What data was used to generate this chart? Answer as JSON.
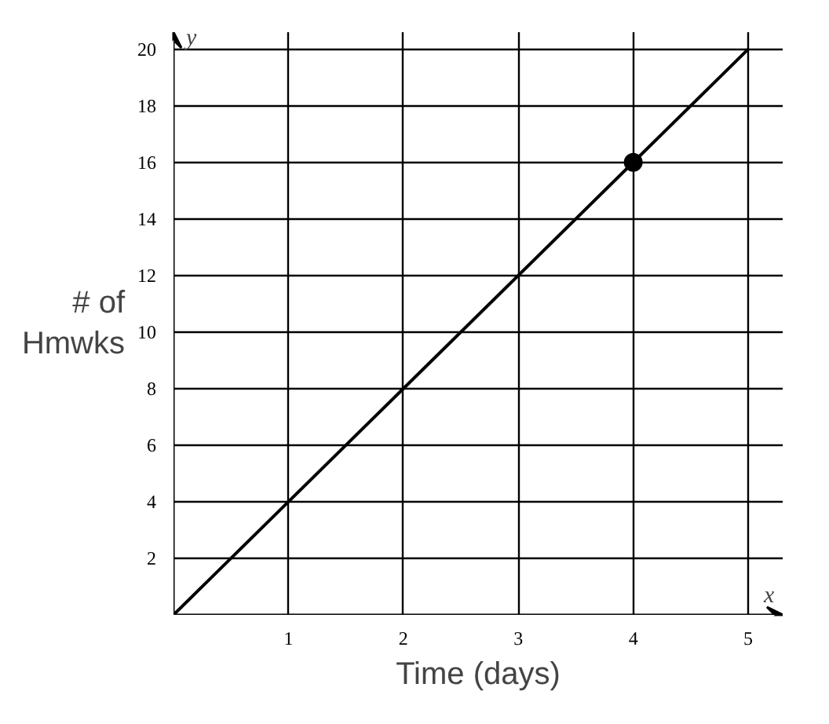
{
  "chart_data": {
    "type": "line",
    "xlabel": "Time (days)",
    "ylabel": "# of Hmwks",
    "xlim": [
      0,
      5.3
    ],
    "ylim": [
      0,
      20.6
    ],
    "xticks": [
      {
        "value": 0,
        "label": null
      },
      1,
      2,
      3,
      4,
      5
    ],
    "yticks": [
      {
        "value": 0,
        "label": null
      },
      2,
      4,
      6,
      8,
      10,
      12,
      14,
      16,
      18,
      20
    ],
    "grid": true,
    "marker": "none",
    "line_style": "solid",
    "series": [
      {
        "color": "#000000",
        "x": [
          0,
          5
        ],
        "values": [
          0,
          20
        ]
      },
      {
        "type": "scatter",
        "color": "#000000",
        "marker": "circle",
        "x": [
          4
        ],
        "values": [
          16
        ]
      }
    ],
    "annotations": [
      "y",
      "x"
    ]
  }
}
